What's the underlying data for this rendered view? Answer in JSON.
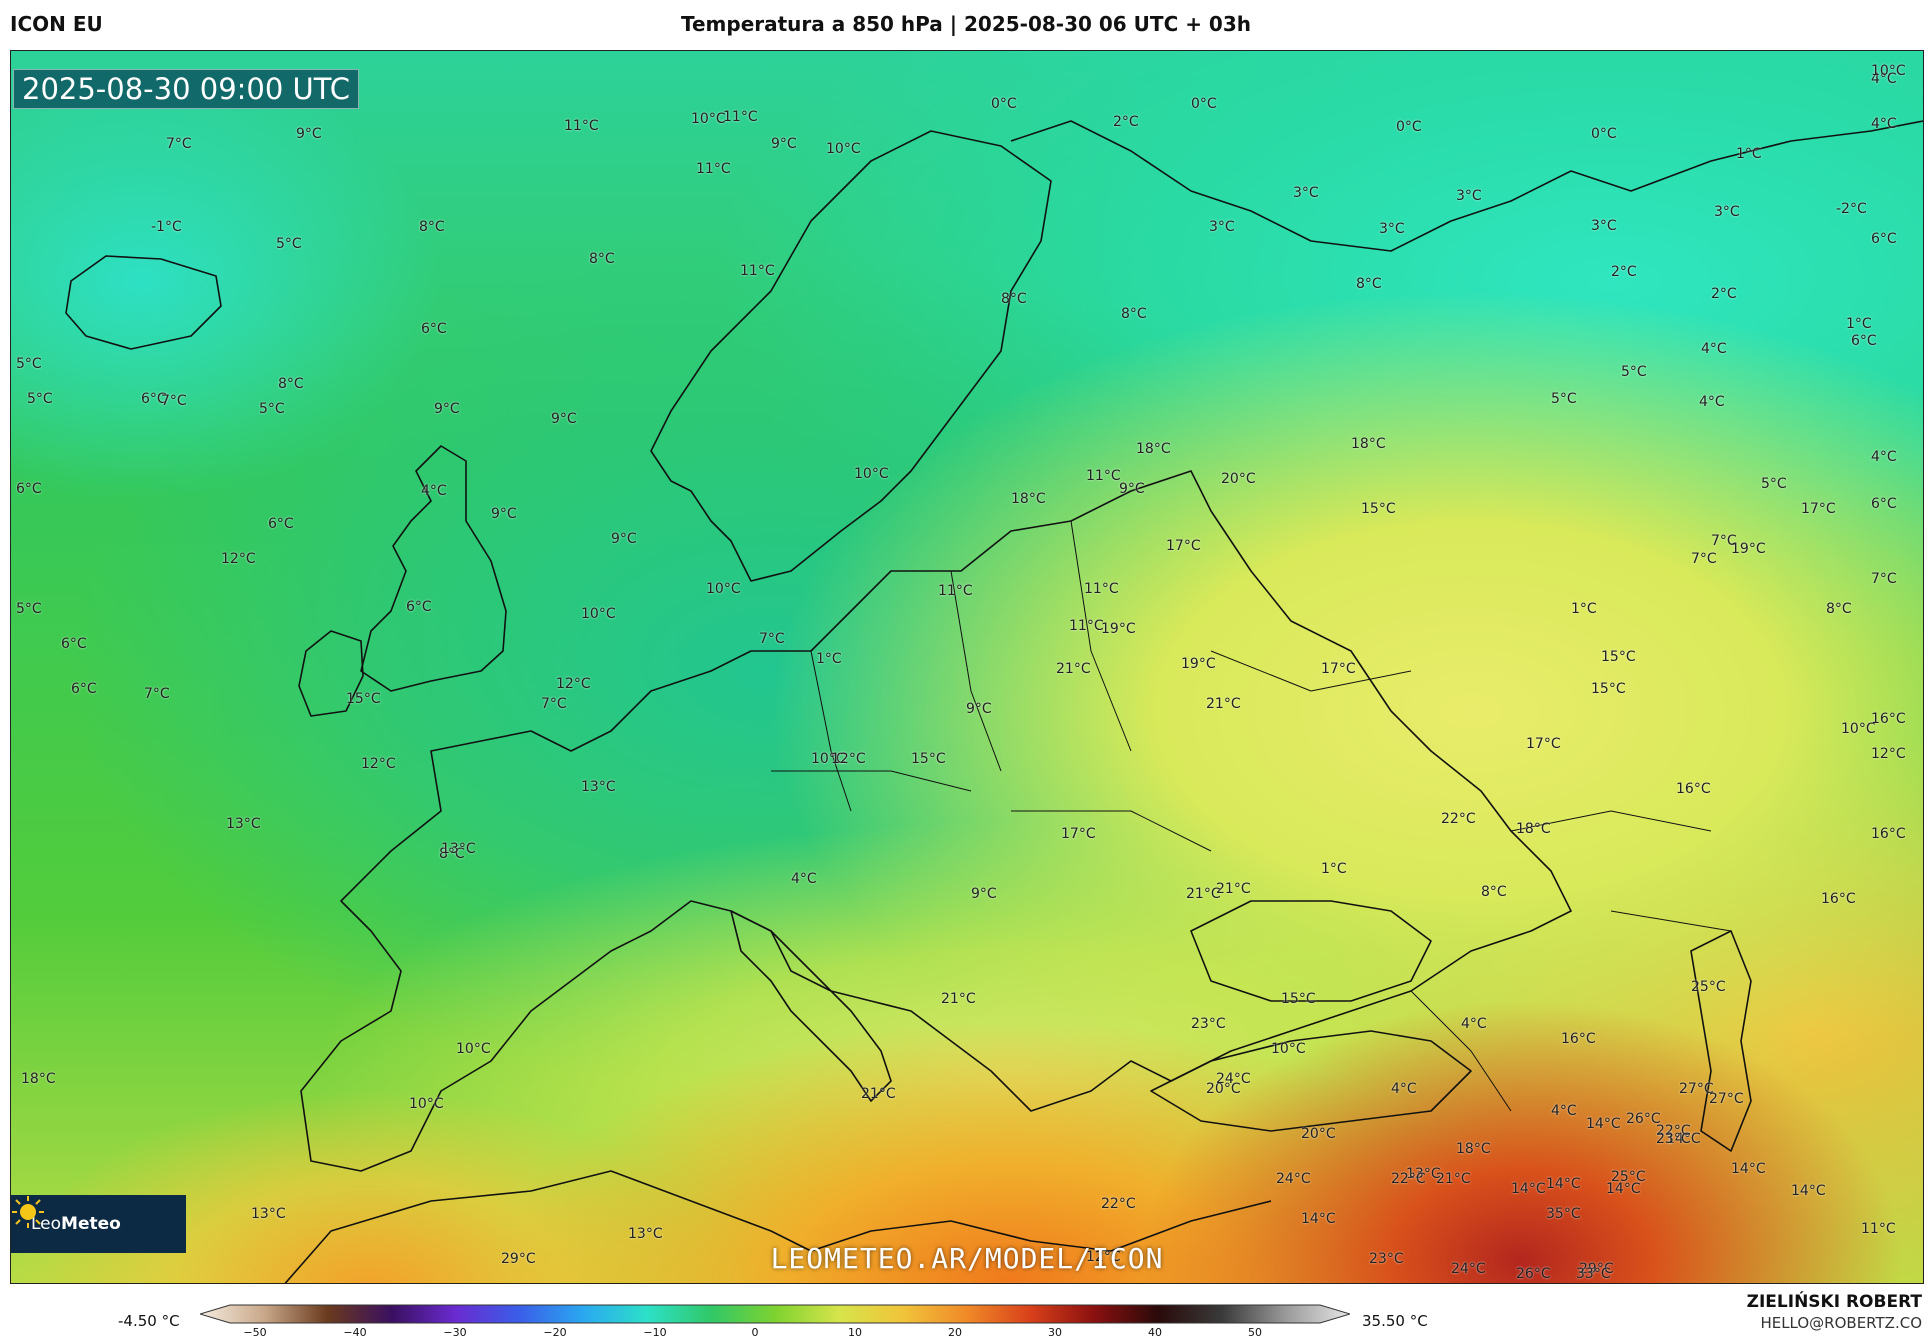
{
  "header": {
    "app_title": "ICON EU",
    "chart_title": "Temperatura a 850 hPa | 2025-08-30 06 UTC + 03h"
  },
  "map": {
    "timestamp": "2025-08-30 09:00 UTC",
    "watermark": "LEOMETEO.AR/MODEL/ICON",
    "logo_icon": "sun-icon",
    "logo_text_a": "Leo",
    "logo_text_b": "Meteo"
  },
  "temperature_labels": [
    "-1°C",
    "0°C",
    "0°C",
    "0°C",
    "0°C",
    "1°C",
    "1°C",
    "1°C",
    "1°C",
    "1°C",
    "2°C",
    "2°C",
    "2°C",
    "-2°C",
    "3°C",
    "3°C",
    "3°C",
    "3°C",
    "3°C",
    "3°C",
    "4°C",
    "4°C",
    "4°C",
    "4°C",
    "4°C",
    "4°C",
    "4°C",
    "4°C",
    "4°C",
    "4°C",
    "5°C",
    "5°C",
    "5°C",
    "5°C",
    "5°C",
    "5°C",
    "5°C",
    "5°C",
    "6°C",
    "6°C",
    "6°C",
    "6°C",
    "6°C",
    "6°C",
    "6°C",
    "6°C",
    "6°C",
    "6°C",
    "7°C",
    "7°C",
    "7°C",
    "7°C",
    "7°C",
    "7°C",
    "7°C",
    "7°C",
    "8°C",
    "8°C",
    "8°C",
    "8°C",
    "8°C",
    "8°C",
    "8°C",
    "8°C",
    "8°C",
    "9°C",
    "9°C",
    "9°C",
    "9°C",
    "9°C",
    "9°C",
    "9°C",
    "9°C",
    "9°C",
    "10°C",
    "10°C",
    "10°C",
    "10°C",
    "10°C",
    "10°C",
    "10°C",
    "10°C",
    "10°C",
    "10°C",
    "10°C",
    "11°C",
    "11°C",
    "11°C",
    "11°C",
    "11°C",
    "11°C",
    "11°C",
    "11°C",
    "11°C",
    "12°C",
    "12°C",
    "12°C",
    "12°C",
    "12°C",
    "12°C",
    "13°C",
    "13°C",
    "13°C",
    "13°C",
    "13°C",
    "13°C",
    "14°C",
    "14°C",
    "14°C",
    "14°C",
    "14°C",
    "14°C",
    "14°C",
    "14°C",
    "15°C",
    "15°C",
    "15°C",
    "15°C",
    "15°C",
    "15°C",
    "16°C",
    "16°C",
    "16°C",
    "16°C",
    "16°C",
    "17°C",
    "17°C",
    "17°C",
    "17°C",
    "17°C",
    "18°C",
    "18°C",
    "18°C",
    "18°C",
    "18°C",
    "18°C",
    "19°C",
    "19°C",
    "19°C",
    "20°C",
    "20°C",
    "20°C",
    "21°C",
    "21°C",
    "21°C",
    "21°C",
    "21°C",
    "21°C",
    "21°C",
    "22°C",
    "22°C",
    "22°C",
    "22°C",
    "23°C",
    "23°C",
    "23°C",
    "24°C",
    "24°C",
    "24°C",
    "25°C",
    "25°C",
    "26°C",
    "26°C",
    "27°C",
    "27°C",
    "29°C",
    "29°C",
    "33°C",
    "35°C"
  ],
  "legend": {
    "min_label": "-4.50 °C",
    "max_label": "35.50 °C",
    "ticks": [
      "−50",
      "−40",
      "−30",
      "−20",
      "−10",
      "0",
      "10",
      "20",
      "30",
      "40",
      "50"
    ],
    "gradient_colors": [
      "#f4ece0",
      "#c9a88a",
      "#6a3a1e",
      "#3a1060",
      "#6a2bd0",
      "#3a5ee8",
      "#2aa8f0",
      "#2de0c8",
      "#30c868",
      "#7ed230",
      "#d6e44a",
      "#f0c43a",
      "#f08a28",
      "#d8401a",
      "#8a1010",
      "#2a0a0a",
      "#3a3a3a",
      "#9a9a9a",
      "#e6e6e6"
    ]
  },
  "footer": {
    "author": "ZIELIŃSKI ROBERT",
    "email": "HELLO@ROBERTZ.CO"
  }
}
